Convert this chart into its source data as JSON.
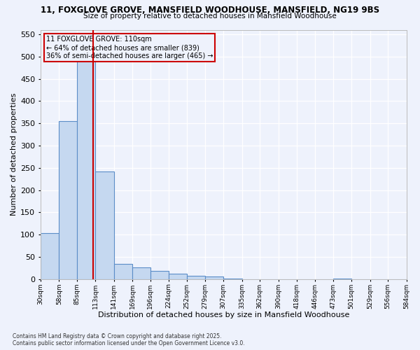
{
  "title1": "11, FOXGLOVE GROVE, MANSFIELD WOODHOUSE, MANSFIELD, NG19 9BS",
  "title2": "Size of property relative to detached houses in Mansfield Woodhouse",
  "xlabel": "Distribution of detached houses by size in Mansfield Woodhouse",
  "ylabel": "Number of detached properties",
  "annotation_title": "11 FOXGLOVE GROVE: 110sqm",
  "annotation_line1": "← 64% of detached houses are smaller (839)",
  "annotation_line2": "36% of semi-detached houses are larger (465) →",
  "property_size": 110,
  "bin_edges": [
    30,
    58,
    85,
    113,
    141,
    169,
    196,
    224,
    252,
    279,
    307,
    335,
    362,
    390,
    418,
    446,
    473,
    501,
    529,
    556,
    584
  ],
  "bar_values": [
    103,
    355,
    500,
    242,
    35,
    27,
    18,
    12,
    8,
    6,
    1,
    0,
    0,
    0,
    0,
    0,
    1,
    0,
    0,
    0
  ],
  "bar_color": "#c5d8f0",
  "bar_edge_color": "#5b8dc8",
  "vline_color": "#cc0000",
  "annotation_box_color": "#cc0000",
  "background_color": "#eef2fc",
  "grid_color": "#ffffff",
  "ylim": [
    0,
    560
  ],
  "yticks": [
    0,
    50,
    100,
    150,
    200,
    250,
    300,
    350,
    400,
    450,
    500,
    550
  ],
  "footer1": "Contains HM Land Registry data © Crown copyright and database right 2025.",
  "footer2": "Contains public sector information licensed under the Open Government Licence v3.0."
}
